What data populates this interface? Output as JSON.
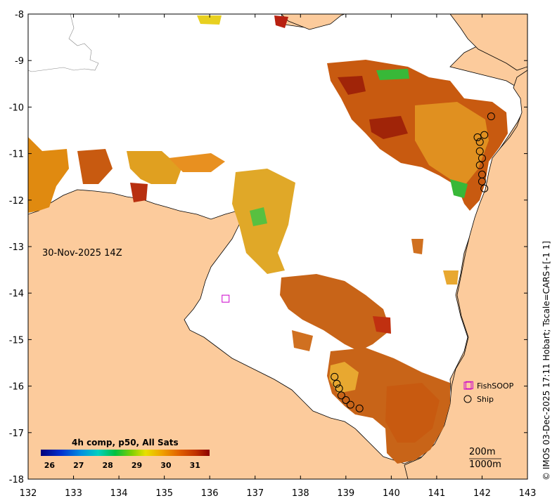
{
  "map": {
    "timestamp_label": "30-Nov-2025 14Z",
    "lon_ticks": [
      "132",
      "133",
      "134",
      "135",
      "136",
      "137",
      "138",
      "139",
      "140",
      "141",
      "142",
      "143"
    ],
    "lat_ticks": [
      "-8",
      "-9",
      "-10",
      "-11",
      "-12",
      "-13",
      "-14",
      "-15",
      "-16",
      "-17",
      "-18"
    ],
    "lon_range": [
      132,
      143
    ],
    "lat_range": [
      -18,
      -8
    ],
    "colorbar": {
      "title": "4h comp, p50, All Sats",
      "ticks": [
        "26",
        "27",
        "28",
        "29",
        "30",
        "31"
      ],
      "range": [
        25.7,
        31.5
      ]
    },
    "legend": {
      "fishsoop": "FishSOOP",
      "ship": "Ship"
    },
    "contours": {
      "c200": "200m",
      "c1000": "1000m"
    },
    "side_text": "© IMOS 03-Dec-2025 17:11 Hobart; Tscale=CARS+[-1 1]",
    "colors": {
      "land": "#fccb9c",
      "ocean_nodata": "#ffffff",
      "fishsoop_marker": "#cc00cc",
      "ship_marker": "#000000"
    },
    "fishsoop_positions": [
      [
        136.35,
        -14.12
      ],
      [
        141.72,
        -15.98
      ]
    ],
    "ship_positions": [
      [
        142.2,
        -10.2
      ],
      [
        142.05,
        -10.6
      ],
      [
        141.9,
        -10.65
      ],
      [
        141.95,
        -10.75
      ],
      [
        141.95,
        -10.95
      ],
      [
        142.0,
        -11.1
      ],
      [
        141.95,
        -11.25
      ],
      [
        142.0,
        -11.45
      ],
      [
        142.0,
        -11.6
      ],
      [
        142.05,
        -11.75
      ],
      [
        138.75,
        -15.8
      ],
      [
        138.8,
        -15.95
      ],
      [
        138.85,
        -16.05
      ],
      [
        138.9,
        -16.2
      ],
      [
        139.0,
        -16.3
      ],
      [
        139.1,
        -16.4
      ],
      [
        139.3,
        -16.48
      ]
    ]
  }
}
